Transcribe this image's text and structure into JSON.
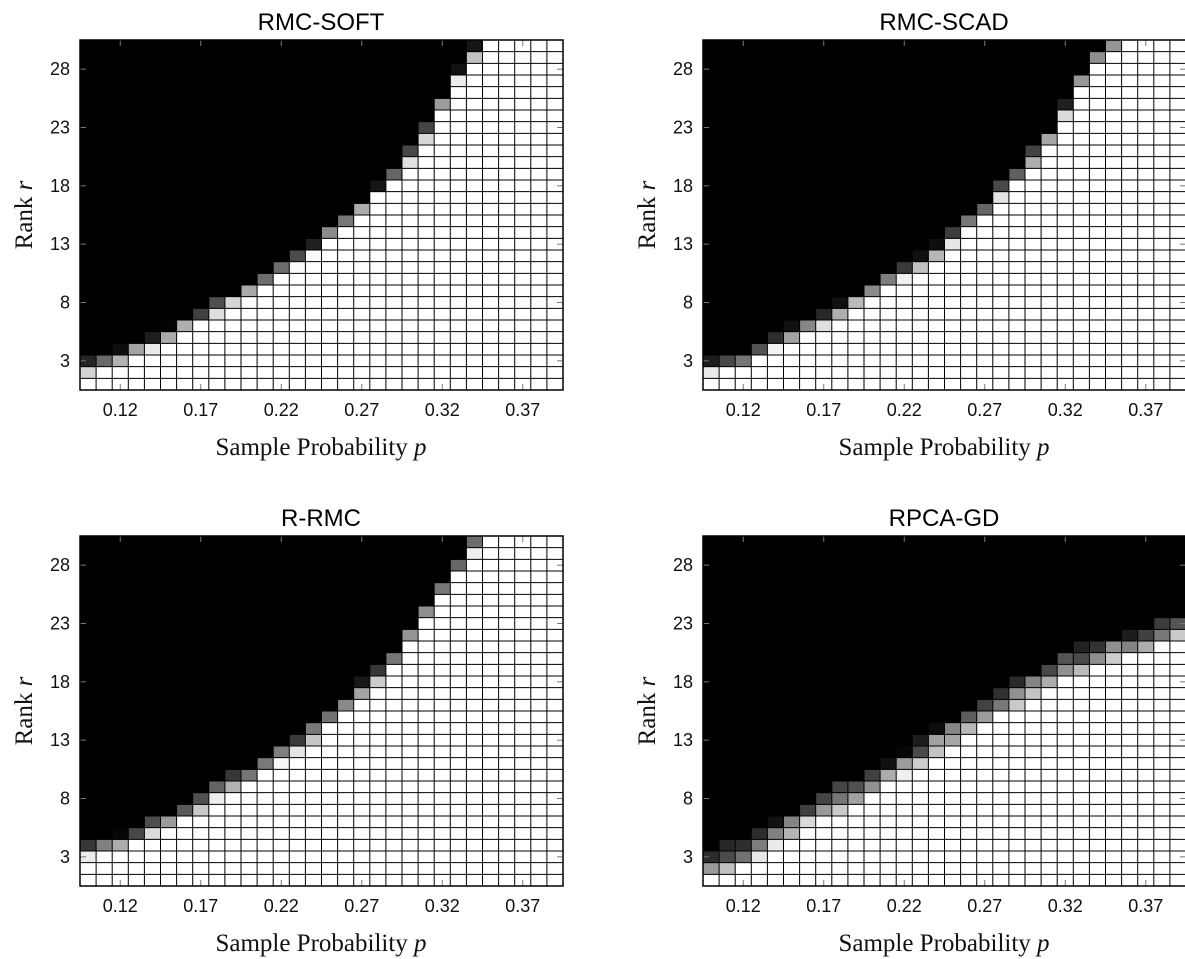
{
  "figure": {
    "xlabel_prefix": "Sample Probability ",
    "xlabel_var": "p",
    "ylabel_prefix": "Rank ",
    "ylabel_var": "r"
  },
  "chart_data": [
    {
      "type": "heatmap",
      "title": "RMC-SOFT",
      "xlabel": "Sample Probability p",
      "ylabel": "Rank r",
      "x_start": 0.1,
      "x_step": 0.01,
      "x_count": 30,
      "y_start": 1,
      "y_step": 1,
      "y_count": 30,
      "xticks": [
        "0.12",
        "0.17",
        "0.22",
        "0.27",
        "0.32",
        "0.37"
      ],
      "yticks": [
        "3",
        "8",
        "13",
        "18",
        "23",
        "28"
      ],
      "colormap": "gray (0 = black, 1 = white)",
      "grid": true,
      "boundary": [
        [
          0.1,
          3.5
        ],
        [
          0.11,
          3.9
        ],
        [
          0.12,
          4.2
        ],
        [
          0.13,
          4.8
        ],
        [
          0.14,
          5.4
        ],
        [
          0.15,
          6.2
        ],
        [
          0.16,
          7.0
        ],
        [
          0.17,
          7.6
        ],
        [
          0.18,
          8.3
        ],
        [
          0.19,
          9.1
        ],
        [
          0.2,
          10.0
        ],
        [
          0.21,
          10.8
        ],
        [
          0.22,
          11.6
        ],
        [
          0.23,
          12.4
        ],
        [
          0.24,
          13.4
        ],
        [
          0.25,
          14.6
        ],
        [
          0.26,
          15.8
        ],
        [
          0.27,
          17.0
        ],
        [
          0.28,
          18.4
        ],
        [
          0.29,
          19.8
        ],
        [
          0.3,
          21.4
        ],
        [
          0.31,
          23.4
        ],
        [
          0.32,
          25.8
        ],
        [
          0.33,
          28.2
        ],
        [
          0.34,
          30.2
        ],
        [
          0.35,
          31.5
        ],
        [
          0.36,
          32.5
        ],
        [
          0.37,
          33.0
        ],
        [
          0.38,
          33.5
        ],
        [
          0.39,
          34.0
        ]
      ],
      "transition_width": 1.6
    },
    {
      "type": "heatmap",
      "title": "RMC-SCAD",
      "xlabel": "Sample Probability p",
      "ylabel": "Rank r",
      "x_start": 0.1,
      "x_step": 0.01,
      "x_count": 30,
      "y_start": 1,
      "y_step": 1,
      "y_count": 30,
      "xticks": [
        "0.12",
        "0.17",
        "0.22",
        "0.27",
        "0.32",
        "0.37"
      ],
      "yticks": [
        "3",
        "8",
        "13",
        "18",
        "23",
        "28"
      ],
      "colormap": "gray (0 = black, 1 = white)",
      "grid": true,
      "boundary": [
        [
          0.1,
          3.2
        ],
        [
          0.11,
          3.6
        ],
        [
          0.12,
          4.0
        ],
        [
          0.13,
          4.6
        ],
        [
          0.14,
          5.3
        ],
        [
          0.15,
          6.1
        ],
        [
          0.16,
          6.8
        ],
        [
          0.17,
          7.5
        ],
        [
          0.18,
          8.3
        ],
        [
          0.19,
          9.0
        ],
        [
          0.2,
          9.8
        ],
        [
          0.21,
          10.6
        ],
        [
          0.22,
          11.4
        ],
        [
          0.23,
          12.2
        ],
        [
          0.24,
          13.2
        ],
        [
          0.25,
          14.4
        ],
        [
          0.26,
          15.6
        ],
        [
          0.27,
          16.9
        ],
        [
          0.28,
          18.2
        ],
        [
          0.29,
          19.6
        ],
        [
          0.3,
          21.2
        ],
        [
          0.31,
          23.0
        ],
        [
          0.32,
          25.4
        ],
        [
          0.33,
          28.0
        ],
        [
          0.34,
          30.0
        ],
        [
          0.35,
          31.0
        ],
        [
          0.36,
          31.8
        ],
        [
          0.37,
          32.5
        ],
        [
          0.38,
          33.0
        ],
        [
          0.39,
          33.5
        ]
      ],
      "transition_width": 1.6
    },
    {
      "type": "heatmap",
      "title": "R-RMC",
      "xlabel": "Sample Probability p",
      "ylabel": "Rank r",
      "x_start": 0.1,
      "x_step": 0.01,
      "x_count": 30,
      "y_start": 1,
      "y_step": 1,
      "y_count": 30,
      "xticks": [
        "0.12",
        "0.17",
        "0.22",
        "0.27",
        "0.32",
        "0.37"
      ],
      "yticks": [
        "3",
        "8",
        "13",
        "18",
        "23",
        "28"
      ],
      "colormap": "gray (0 = black, 1 = white)",
      "grid": true,
      "boundary": [
        [
          0.1,
          4.6
        ],
        [
          0.11,
          5.0
        ],
        [
          0.12,
          5.3
        ],
        [
          0.13,
          5.8
        ],
        [
          0.14,
          6.4
        ],
        [
          0.15,
          7.0
        ],
        [
          0.16,
          7.8
        ],
        [
          0.17,
          8.6
        ],
        [
          0.18,
          9.4
        ],
        [
          0.19,
          10.2
        ],
        [
          0.2,
          11.0
        ],
        [
          0.21,
          11.8
        ],
        [
          0.22,
          12.6
        ],
        [
          0.23,
          13.6
        ],
        [
          0.24,
          14.6
        ],
        [
          0.25,
          15.8
        ],
        [
          0.26,
          17.0
        ],
        [
          0.27,
          18.2
        ],
        [
          0.28,
          19.6
        ],
        [
          0.29,
          21.0
        ],
        [
          0.3,
          22.8
        ],
        [
          0.31,
          24.8
        ],
        [
          0.32,
          26.8
        ],
        [
          0.33,
          28.8
        ],
        [
          0.34,
          30.5
        ],
        [
          0.35,
          31.6
        ],
        [
          0.36,
          32.4
        ],
        [
          0.37,
          33.0
        ],
        [
          0.38,
          33.5
        ],
        [
          0.39,
          34.0
        ]
      ],
      "transition_width": 1.8
    },
    {
      "type": "heatmap",
      "title": "RPCA-GD",
      "xlabel": "Sample Probability p",
      "ylabel": "Rank r",
      "x_start": 0.1,
      "x_step": 0.01,
      "x_count": 30,
      "y_start": 1,
      "y_step": 1,
      "y_count": 30,
      "xticks": [
        "0.12",
        "0.17",
        "0.22",
        "0.27",
        "0.32",
        "0.37"
      ],
      "yticks": [
        "3",
        "8",
        "13",
        "18",
        "23",
        "28"
      ],
      "colormap": "gray (0 = black, 1 = white)",
      "grid": true,
      "boundary": [
        [
          0.1,
          3.8
        ],
        [
          0.11,
          4.2
        ],
        [
          0.12,
          4.6
        ],
        [
          0.13,
          5.4
        ],
        [
          0.14,
          6.2
        ],
        [
          0.15,
          7.0
        ],
        [
          0.16,
          7.8
        ],
        [
          0.17,
          8.6
        ],
        [
          0.18,
          9.4
        ],
        [
          0.19,
          10.0
        ],
        [
          0.2,
          10.8
        ],
        [
          0.21,
          11.6
        ],
        [
          0.22,
          12.4
        ],
        [
          0.23,
          13.2
        ],
        [
          0.24,
          14.2
        ],
        [
          0.25,
          15.0
        ],
        [
          0.26,
          15.8
        ],
        [
          0.27,
          16.6
        ],
        [
          0.28,
          17.4
        ],
        [
          0.29,
          18.2
        ],
        [
          0.3,
          19.0
        ],
        [
          0.31,
          19.8
        ],
        [
          0.32,
          20.6
        ],
        [
          0.33,
          21.2
        ],
        [
          0.34,
          21.8
        ],
        [
          0.35,
          22.2
        ],
        [
          0.36,
          22.6
        ],
        [
          0.37,
          23.0
        ],
        [
          0.38,
          23.6
        ],
        [
          0.39,
          24.0
        ]
      ],
      "transition_width": 2.6
    }
  ]
}
